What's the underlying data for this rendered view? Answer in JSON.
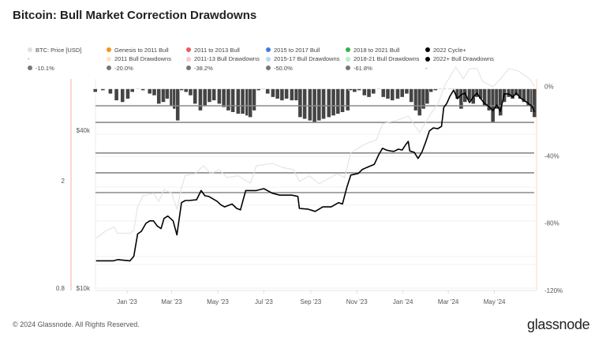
{
  "title": "Bitcoin: Bull Market Correction Drawdowns",
  "footer": "© 2024 Glassnode. All Rights Reserved.",
  "logo": "glassnode",
  "legend": {
    "row1": [
      {
        "label": "BTC: Price [USD]",
        "color": "#e0e0e0"
      },
      {
        "label": "Genesis to 2011 Bull",
        "color": "#f7931a"
      },
      {
        "label": "2011 to 2013 Bull",
        "color": "#f05a5a"
      },
      {
        "label": "2015 to 2017 Bull",
        "color": "#3b7de9"
      },
      {
        "label": "2018 to 2021 Bull",
        "color": "#2db84d"
      },
      {
        "label": "2022 Cycle+",
        "color": "#000000"
      }
    ],
    "row2": [
      {
        "label": "-",
        "color": ""
      },
      {
        "label": "2011 Bull Drawdowns",
        "color": "#fde3c3"
      },
      {
        "label": "2011-13 Bull Drawdowns",
        "color": "#fcc9c9"
      },
      {
        "label": "2015-17 Bull Drawdowns",
        "color": "#b8d7fb"
      },
      {
        "label": "2018-21 Bull Drawdowns",
        "color": "#b4efc4"
      },
      {
        "label": "2022+ Bull Drawdowns",
        "color": "#000000"
      }
    ],
    "row3": [
      {
        "label": "-10.1%",
        "color": "#777777"
      },
      {
        "label": "-20.0%",
        "color": "#777777"
      },
      {
        "label": "-38.2%",
        "color": "#777777"
      },
      {
        "label": "-50.0%",
        "color": "#777777"
      },
      {
        "label": "-61.8%",
        "color": "#777777"
      },
      {
        "label": "-",
        "color": ""
      }
    ]
  },
  "chart_data": {
    "type": "line",
    "grid": true,
    "x_ticks": [
      "Jan '23",
      "Mar '23",
      "May '23",
      "Jul '23",
      "Sep '23",
      "Nov '23",
      "Jan '24",
      "Mar '24",
      "May '24"
    ],
    "x_tick_dates": [
      "2023-01-01",
      "2023-03-01",
      "2023-05-01",
      "2023-07-01",
      "2023-09-01",
      "2023-11-01",
      "2024-01-01",
      "2024-03-01",
      "2024-05-01"
    ],
    "xlim": [
      "2022-11-20",
      "2024-06-25"
    ],
    "axes": {
      "multiple": {
        "ticks": [
          "0.8",
          "2"
        ],
        "tick_values": [
          0.8,
          2
        ],
        "scale": "log",
        "range": [
          0.8,
          5.3
        ]
      },
      "price": {
        "ticks": [
          "$10k",
          "$40k"
        ],
        "tick_values": [
          10000,
          40000
        ],
        "scale": "log",
        "range": [
          10000,
          73000
        ]
      },
      "drawdown": {
        "ticks": [
          "0%",
          "-40%",
          "-80%",
          "-120%"
        ],
        "tick_values": [
          0,
          -40,
          -80,
          -120
        ],
        "scale": "linear",
        "range": [
          -120,
          0
        ]
      }
    },
    "levels": [
      -10.1,
      -20.0,
      -38.2,
      -50.0,
      -61.8
    ],
    "series": [
      {
        "name": "BTC: Price [USD]",
        "axis": "price",
        "color": "#e3e3e3",
        "x": [
          "2022-11-21",
          "2022-12-05",
          "2022-12-15",
          "2022-12-19",
          "2023-01-05",
          "2023-01-10",
          "2023-01-15",
          "2023-01-22",
          "2023-02-05",
          "2023-02-12",
          "2023-02-19",
          "2023-03-01",
          "2023-03-08",
          "2023-03-14",
          "2023-03-19",
          "2023-04-01",
          "2023-04-12",
          "2023-04-22",
          "2023-05-03",
          "2023-05-13",
          "2023-05-28",
          "2023-06-13",
          "2023-06-21",
          "2023-07-12",
          "2023-07-25",
          "2023-08-09",
          "2023-08-17",
          "2023-08-30",
          "2023-09-12",
          "2023-10-06",
          "2023-10-16",
          "2023-10-24",
          "2023-11-11",
          "2023-11-27",
          "2023-12-05",
          "2023-12-26",
          "2024-01-08",
          "2024-01-23",
          "2024-02-05",
          "2024-02-16",
          "2024-02-26",
          "2024-03-11",
          "2024-03-21",
          "2024-03-29",
          "2024-04-08",
          "2024-04-15",
          "2024-04-29",
          "2024-05-09",
          "2024-05-20",
          "2024-06-02",
          "2024-06-17",
          "2024-06-23"
        ],
        "values": [
          15500,
          16600,
          17100,
          16200,
          16200,
          16600,
          20400,
          22500,
          23000,
          21400,
          23800,
          23000,
          20000,
          24100,
          26900,
          27300,
          29300,
          27300,
          28300,
          26400,
          26800,
          25100,
          29300,
          29900,
          28900,
          28300,
          25500,
          26800,
          25000,
          27300,
          26400,
          32900,
          35300,
          36800,
          42300,
          43800,
          45300,
          39200,
          45300,
          50300,
          59800,
          69600,
          62700,
          68700,
          68700,
          61500,
          58600,
          62700,
          68700,
          67200,
          62700,
          58600
        ]
      },
      {
        "name": "2022 Cycle+",
        "axis": "multiple",
        "color": "#000000",
        "x": [
          "2022-11-21",
          "2022-11-30",
          "2022-12-14",
          "2022-12-20",
          "2023-01-05",
          "2023-01-10",
          "2023-01-15",
          "2023-01-20",
          "2023-01-26",
          "2023-01-31",
          "2023-02-05",
          "2023-02-10",
          "2023-02-15",
          "2023-02-19",
          "2023-02-24",
          "2023-03-03",
          "2023-03-08",
          "2023-03-14",
          "2023-03-19",
          "2023-03-24",
          "2023-04-03",
          "2023-04-09",
          "2023-04-14",
          "2023-04-19",
          "2023-04-30",
          "2023-05-05",
          "2023-05-10",
          "2023-05-15",
          "2023-05-20",
          "2023-05-26",
          "2023-05-31",
          "2023-06-07",
          "2023-06-21",
          "2023-07-01",
          "2023-07-12",
          "2023-07-22",
          "2023-08-07",
          "2023-08-15",
          "2023-08-17",
          "2023-08-28",
          "2023-09-07",
          "2023-09-17",
          "2023-09-28",
          "2023-10-08",
          "2023-10-13",
          "2023-10-19",
          "2023-10-24",
          "2023-11-03",
          "2023-11-08",
          "2023-11-14",
          "2023-11-19",
          "2023-11-24",
          "2023-11-30",
          "2023-12-05",
          "2023-12-10",
          "2023-12-15",
          "2023-12-20",
          "2023-12-26",
          "2023-12-31",
          "2024-01-05",
          "2024-01-08",
          "2024-01-10",
          "2024-01-16",
          "2024-01-21",
          "2024-01-26",
          "2024-01-31",
          "2024-02-05",
          "2024-02-10",
          "2024-02-16",
          "2024-02-21",
          "2024-02-24",
          "2024-02-28",
          "2024-03-03",
          "2024-03-08",
          "2024-03-13",
          "2024-03-18",
          "2024-03-23",
          "2024-03-29",
          "2024-04-03",
          "2024-04-08",
          "2024-04-13",
          "2024-04-18",
          "2024-04-24",
          "2024-04-29",
          "2024-05-04",
          "2024-05-09",
          "2024-05-14",
          "2024-05-20",
          "2024-05-25",
          "2024-05-30",
          "2024-06-04",
          "2024-06-09",
          "2024-06-15",
          "2024-06-20",
          "2024-06-23"
        ],
        "values": [
          1.01,
          1.01,
          1.01,
          1.02,
          1.01,
          1.05,
          1.27,
          1.3,
          1.39,
          1.42,
          1.42,
          1.36,
          1.33,
          1.45,
          1.48,
          1.42,
          1.26,
          1.66,
          1.69,
          1.69,
          1.7,
          1.84,
          1.76,
          1.75,
          1.68,
          1.63,
          1.6,
          1.62,
          1.64,
          1.58,
          1.56,
          1.84,
          1.84,
          1.87,
          1.8,
          1.77,
          1.77,
          1.75,
          1.58,
          1.57,
          1.54,
          1.6,
          1.6,
          1.66,
          1.64,
          1.9,
          2.1,
          2.13,
          2.2,
          2.24,
          2.27,
          2.3,
          2.5,
          2.64,
          2.6,
          2.58,
          2.57,
          2.62,
          2.6,
          2.73,
          2.8,
          2.58,
          2.55,
          2.42,
          2.55,
          2.78,
          3.06,
          3.14,
          3.12,
          3.18,
          3.74,
          3.87,
          4.11,
          4.34,
          4.03,
          4.17,
          4.23,
          3.9,
          4.09,
          4.23,
          4.03,
          3.87,
          3.77,
          3.64,
          3.82,
          3.62,
          4.2,
          4.2,
          4.09,
          4.23,
          4.06,
          3.98,
          3.87,
          3.77,
          3.6
        ]
      },
      {
        "name": "2022+ Bull Drawdowns",
        "axis": "drawdown",
        "type": "bar",
        "color": "#444444",
        "x": [
          "2022-11-20",
          "2022-11-30",
          "2022-12-10",
          "2022-12-18",
          "2022-12-26",
          "2023-01-02",
          "2023-01-08",
          "2023-01-15",
          "2023-01-22",
          "2023-01-31",
          "2023-02-06",
          "2023-02-12",
          "2023-02-18",
          "2023-02-23",
          "2023-03-01",
          "2023-03-05",
          "2023-03-09",
          "2023-03-14",
          "2023-03-20",
          "2023-03-26",
          "2023-04-01",
          "2023-04-08",
          "2023-04-14",
          "2023-04-20",
          "2023-04-26",
          "2023-05-03",
          "2023-05-09",
          "2023-05-15",
          "2023-05-21",
          "2023-05-28",
          "2023-06-03",
          "2023-06-09",
          "2023-06-13",
          "2023-06-18",
          "2023-06-24",
          "2023-06-30",
          "2023-07-06",
          "2023-07-13",
          "2023-07-19",
          "2023-07-25",
          "2023-07-31",
          "2023-08-07",
          "2023-08-13",
          "2023-08-18",
          "2023-08-24",
          "2023-08-31",
          "2023-09-06",
          "2023-09-12",
          "2023-09-18",
          "2023-09-25",
          "2023-10-01",
          "2023-10-07",
          "2023-10-13",
          "2023-10-20",
          "2023-10-24",
          "2023-10-29",
          "2023-11-04",
          "2023-11-11",
          "2023-11-17",
          "2023-11-23",
          "2023-11-30",
          "2023-12-06",
          "2023-12-12",
          "2023-12-18",
          "2023-12-25",
          "2023-12-31",
          "2024-01-06",
          "2024-01-12",
          "2024-01-18",
          "2024-01-23",
          "2024-01-28",
          "2024-02-02",
          "2024-02-07",
          "2024-02-13",
          "2024-02-19",
          "2024-02-25",
          "2024-03-03",
          "2024-03-08",
          "2024-03-13",
          "2024-03-18",
          "2024-03-23",
          "2024-03-29",
          "2024-04-03",
          "2024-04-08",
          "2024-04-13",
          "2024-04-18",
          "2024-04-24",
          "2024-04-29",
          "2024-05-04",
          "2024-05-09",
          "2024-05-14",
          "2024-05-20",
          "2024-05-25",
          "2024-05-30",
          "2024-06-04",
          "2024-06-09",
          "2024-06-15",
          "2024-06-20",
          "2024-06-23"
        ],
        "values": [
          -2,
          -1,
          -3,
          -7,
          -8,
          -6,
          -2,
          0,
          -1,
          -3,
          -4,
          -9,
          -8,
          -6,
          -10,
          -12,
          -19,
          -1,
          -2,
          -4,
          -9,
          -13,
          -10,
          -8,
          -7,
          -9,
          -11,
          -13,
          -14,
          -15,
          -15,
          -16,
          -17,
          -13,
          -1,
          0,
          -3,
          -5,
          -6,
          -7,
          -6,
          -7,
          -7,
          -17,
          -18,
          -19,
          -20,
          -19,
          -18,
          -17,
          -16,
          -15,
          -14,
          -13,
          -1,
          -2,
          -1,
          -4,
          -5,
          -3,
          0,
          -5,
          -6,
          -7,
          -6,
          -5,
          -3,
          -8,
          -13,
          -16,
          -12,
          -9,
          -2,
          -1,
          0,
          0,
          0,
          0,
          -6,
          -12,
          -8,
          -7,
          -9,
          -5,
          -6,
          -10,
          -13,
          -20,
          -12,
          -16,
          -8,
          -5,
          -6,
          -4,
          -6,
          -8,
          -10,
          -14,
          -17
        ]
      }
    ]
  }
}
